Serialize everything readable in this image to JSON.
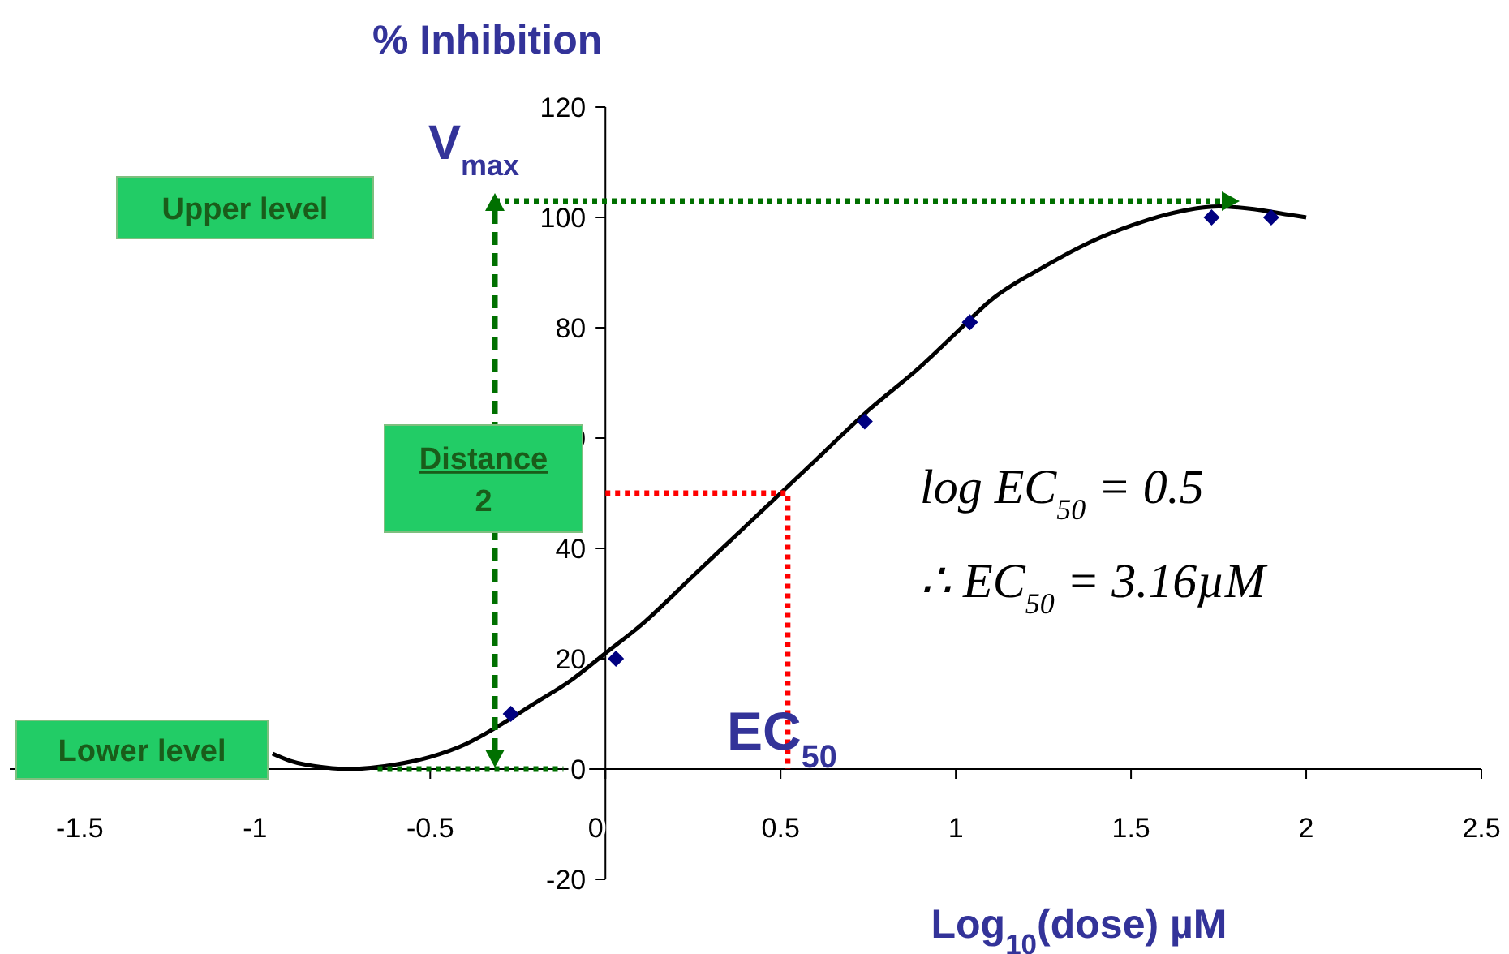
{
  "chart_data": {
    "type": "scatter",
    "ylabel": "% Inhibition",
    "xlabel": "Log$_{10}$(dose) µM",
    "xlim": [
      -1.7,
      2.5
    ],
    "ylim": [
      -20,
      120
    ],
    "xticks": [
      -1.5,
      -1,
      -0.5,
      0,
      0.5,
      1,
      1.5,
      2,
      2.5
    ],
    "yticks": [
      -20,
      0,
      20,
      40,
      60,
      80,
      100,
      120
    ],
    "series": [
      {
        "color": "#000080",
        "marker": "diamond",
        "x": [
          -0.27,
          0.03,
          0.74,
          1.04,
          1.73,
          1.9
        ],
        "values": [
          10,
          20,
          63,
          81,
          100,
          100
        ]
      },
      {
        "type": "line",
        "color": "#000000",
        "line_style": "solid",
        "x": [
          -0.95,
          -0.9,
          -0.8,
          -0.73,
          -0.6,
          -0.5,
          -0.4,
          -0.3,
          -0.2,
          -0.1,
          0,
          0.1,
          0.25,
          0.4,
          0.5,
          0.6,
          0.75,
          0.9,
          1,
          1.1,
          1.25,
          1.4,
          1.5,
          1.6,
          1.75,
          1.85,
          1.95,
          2.0
        ],
        "values": [
          2.8,
          1.5,
          0.3,
          0,
          0.8,
          2.2,
          4.5,
          8,
          12,
          16,
          21,
          26,
          35,
          44,
          50,
          56,
          65,
          73,
          79,
          85,
          91,
          96,
          98.5,
          100.5,
          102,
          101.5,
          100.5,
          100
        ]
      },
      {
        "type": "line",
        "color": "#007000",
        "line_style": "dotted",
        "x": [
          -0.65,
          -0.12
        ],
        "values": [
          0,
          0
        ]
      },
      {
        "type": "line",
        "color": "#ff0000",
        "line_style": "dotted",
        "x": [
          0,
          0.52,
          0.52
        ],
        "values": [
          50,
          50,
          0
        ]
      }
    ],
    "annotations": [
      "V$_{max}$",
      "Upper level",
      "Distance\n2",
      "Lower level",
      "EC$_{50}$",
      "log EC$_{50}$ = 0.5",
      "∴ EC$_{50}$ = 3.16µM"
    ]
  }
}
